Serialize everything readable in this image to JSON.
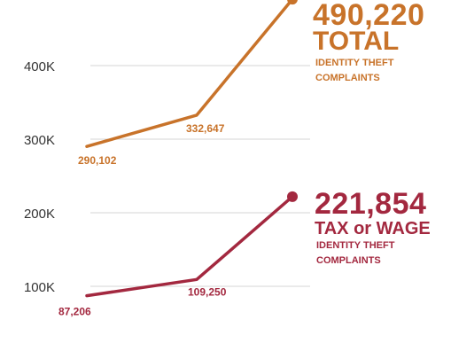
{
  "chart_data": {
    "type": "line",
    "y_ticks": [
      "400K",
      "300K",
      "200K",
      "100K"
    ],
    "y_tick_values": [
      400000,
      300000,
      200000,
      100000
    ],
    "ylim": [
      80000,
      500000
    ],
    "grid": true,
    "series": [
      {
        "color": "#c8732a",
        "values": [
          290102,
          332647,
          490220
        ],
        "data_labels": [
          "290,102",
          "332,647",
          ""
        ],
        "callout": {
          "value": "490,220",
          "label": "TOTAL",
          "caption_1": "IDENTITY THEFT",
          "caption_2": "COMPLAINTS"
        }
      },
      {
        "color": "#a3283f",
        "values": [
          87206,
          109250,
          221854
        ],
        "data_labels": [
          "87,206",
          "109,250",
          ""
        ],
        "callout": {
          "value": "221,854",
          "label": "TAX or WAGE",
          "caption_1": "IDENTITY THEFT",
          "caption_2": "COMPLAINTS"
        }
      }
    ]
  },
  "colors": {
    "orange": "#c8732a",
    "crimson": "#a3283f",
    "grid": "#d6d6d6",
    "axis_text": "#333333"
  }
}
